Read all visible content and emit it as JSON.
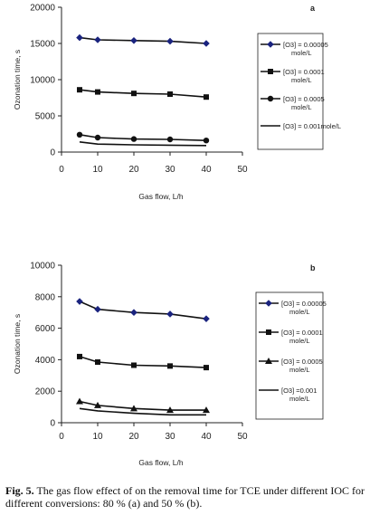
{
  "chart_data": [
    {
      "type": "line",
      "panel_label": "a",
      "xlabel": "Gas flow, L/h",
      "ylabel": "Ozonation time, s",
      "xlim": [
        0,
        50
      ],
      "ylim": [
        0,
        20000
      ],
      "x_ticks": [
        "0",
        "10",
        "20",
        "30",
        "40",
        "50"
      ],
      "y_ticks": [
        "0",
        "5000",
        "10000",
        "15000",
        "20000"
      ],
      "grid": false,
      "legend_position": "right",
      "x": [
        5,
        10,
        20,
        30,
        40
      ],
      "series": [
        {
          "name": "[O3] = 0.00005 mole/L",
          "marker": "diamond",
          "values": [
            15800,
            15500,
            15400,
            15300,
            15000
          ]
        },
        {
          "name": "[O3] = 0.0001 mole/L",
          "marker": "square",
          "values": [
            8600,
            8300,
            8100,
            8000,
            7600
          ]
        },
        {
          "name": "[O3] = 0.0005 mole/L",
          "marker": "circle",
          "values": [
            2400,
            2000,
            1800,
            1750,
            1600
          ]
        },
        {
          "name": "[O3] = 0.001mole/L",
          "marker": "none",
          "values": [
            1400,
            1100,
            1000,
            950,
            900
          ]
        }
      ]
    },
    {
      "type": "line",
      "panel_label": "b",
      "xlabel": "Gas flow, L/h",
      "ylabel": "Ozonation time, s",
      "xlim": [
        0,
        50
      ],
      "ylim": [
        0,
        10000
      ],
      "x_ticks": [
        "0",
        "10",
        "20",
        "30",
        "40",
        "50"
      ],
      "y_ticks": [
        "0",
        "2000",
        "4000",
        "6000",
        "8000",
        "10000"
      ],
      "grid": false,
      "legend_position": "right",
      "x": [
        5,
        10,
        20,
        30,
        40
      ],
      "series": [
        {
          "name": "[O3] = 0.00005 mole/L",
          "marker": "diamond",
          "values": [
            7700,
            7200,
            7000,
            6900,
            6600
          ]
        },
        {
          "name": "[O3] = 0.0001 mole/L",
          "marker": "square",
          "values": [
            4200,
            3850,
            3650,
            3600,
            3500
          ]
        },
        {
          "name": "[O3] = 0.0005 mole/L",
          "marker": "triangle",
          "values": [
            1350,
            1100,
            900,
            800,
            800
          ]
        },
        {
          "name": "[O3] =0.001 mole/L",
          "marker": "none",
          "values": [
            900,
            750,
            600,
            500,
            500
          ]
        }
      ]
    }
  ],
  "caption": {
    "lead": "Fig. 5.",
    "text": " The gas flow effect of on the removal time for TCE under different IOC for different conversions: 80 % (a) and 50 % (b)."
  }
}
